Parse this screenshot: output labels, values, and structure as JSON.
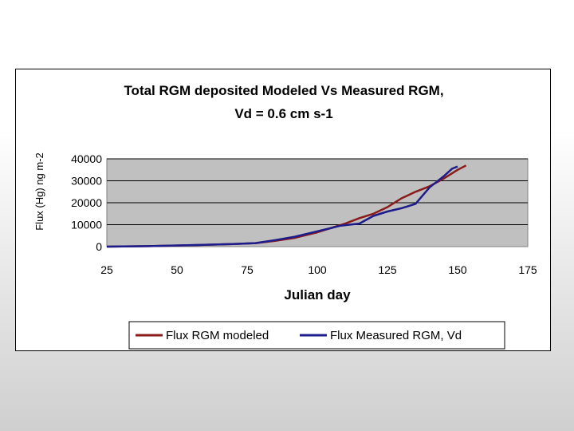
{
  "chart_data": {
    "type": "line",
    "title_line1": "Total RGM deposited Modeled Vs Measured RGM,",
    "title_line2": "Vd = 0.6 cm s-1",
    "xlabel": "Julian day",
    "ylabel": "Flux (Hg) ng m-2",
    "xlim": [
      25,
      175
    ],
    "ylim": [
      0,
      40000
    ],
    "x_ticks": [
      "25",
      "50",
      "75",
      "100",
      "125",
      "150",
      "175"
    ],
    "y_ticks": [
      "0",
      "10000",
      "20000",
      "30000",
      "40000"
    ],
    "grid": "horizontal",
    "plot_background": "#c0c0c0",
    "legend_position": "bottom",
    "series": [
      {
        "name": "Flux RGM modeled",
        "color": "#8b1a1a",
        "points": [
          [
            25,
            0
          ],
          [
            40,
            200
          ],
          [
            55,
            600
          ],
          [
            70,
            1200
          ],
          [
            78,
            1600
          ],
          [
            85,
            2600
          ],
          [
            92,
            4000
          ],
          [
            100,
            6500
          ],
          [
            105,
            8500
          ],
          [
            110,
            10500
          ],
          [
            115,
            13000
          ],
          [
            120,
            15000
          ],
          [
            125,
            18000
          ],
          [
            130,
            22000
          ],
          [
            135,
            25000
          ],
          [
            140,
            27500
          ],
          [
            145,
            31000
          ],
          [
            150,
            35000
          ],
          [
            153,
            37000
          ]
        ]
      },
      {
        "name": "Flux Measured RGM, Vd",
        "color": "#1c1c8c",
        "points": [
          [
            25,
            0
          ],
          [
            40,
            200
          ],
          [
            55,
            700
          ],
          [
            70,
            1200
          ],
          [
            78,
            1600
          ],
          [
            85,
            3000
          ],
          [
            92,
            4500
          ],
          [
            100,
            7000
          ],
          [
            105,
            8500
          ],
          [
            108,
            9500
          ],
          [
            115,
            10500
          ],
          [
            120,
            14000
          ],
          [
            125,
            16000
          ],
          [
            130,
            17500
          ],
          [
            135,
            19500
          ],
          [
            140,
            27000
          ],
          [
            145,
            32000
          ],
          [
            148,
            35500
          ],
          [
            150,
            36500
          ]
        ]
      }
    ]
  }
}
